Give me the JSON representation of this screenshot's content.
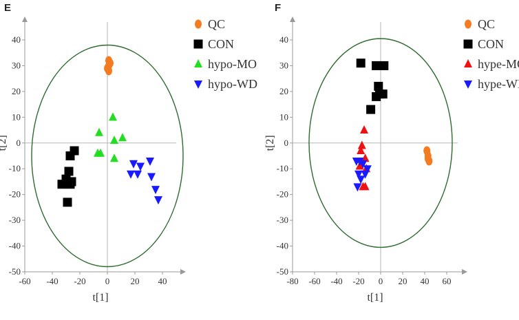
{
  "chart_data": [
    {
      "panel_label": "E",
      "type": "scatter",
      "xlabel": "t[1]",
      "ylabel": "t[2]",
      "xlim": [
        -60,
        50
      ],
      "ylim": [
        -50,
        45
      ],
      "xticks": [
        -60,
        -40,
        -20,
        0,
        20,
        40
      ],
      "yticks": [
        -50,
        -40,
        -30,
        -20,
        -10,
        0,
        10,
        20,
        30,
        40
      ],
      "ellipse": {
        "cx": 0,
        "cy": -5,
        "rx": 55,
        "ry": 43,
        "color": "#2e6b2e"
      },
      "series": [
        {
          "name": "QC",
          "marker": "circle",
          "color": "#f47b20",
          "points": [
            [
              1,
              32
            ],
            [
              2,
              31
            ],
            [
              1,
              30
            ],
            [
              0,
              29
            ],
            [
              1,
              28
            ]
          ]
        },
        {
          "name": "CON",
          "marker": "square",
          "color": "#000000",
          "points": [
            [
              -24,
              -3
            ],
            [
              -27,
              -5
            ],
            [
              -28,
              -11
            ],
            [
              -30,
              -14
            ],
            [
              -27,
              -16
            ],
            [
              -26,
              -15
            ],
            [
              -33,
              -16
            ],
            [
              -29,
              -23
            ]
          ]
        },
        {
          "name": "hypo-MO",
          "marker": "triangle-up",
          "color": "#22dd22",
          "points": [
            [
              4,
              10
            ],
            [
              -6,
              4
            ],
            [
              5,
              1
            ],
            [
              11,
              2
            ],
            [
              -7,
              -4
            ],
            [
              -5,
              -4
            ],
            [
              5,
              -6
            ]
          ]
        },
        {
          "name": "hypo-WD",
          "marker": "triangle-down",
          "color": "#1a1aff",
          "points": [
            [
              19,
              -8
            ],
            [
              24,
              -9
            ],
            [
              31,
              -7
            ],
            [
              17,
              -12
            ],
            [
              22,
              -12
            ],
            [
              32,
              -13
            ],
            [
              35,
              -18
            ],
            [
              37,
              -22
            ]
          ]
        }
      ]
    },
    {
      "panel_label": "F",
      "type": "scatter",
      "xlabel": "t[1]",
      "ylabel": "t[2]",
      "xlim": [
        -80,
        70
      ],
      "ylim": [
        -50,
        45
      ],
      "xticks": [
        -80,
        -60,
        -40,
        -20,
        0,
        20,
        40,
        60
      ],
      "yticks": [
        -50,
        -40,
        -30,
        -20,
        -10,
        0,
        10,
        20,
        30,
        40
      ],
      "ellipse": {
        "cx": 0,
        "cy": 0,
        "rx": 65,
        "ry": 40.5,
        "color": "#2e6b2e"
      },
      "series": [
        {
          "name": "QC",
          "marker": "circle",
          "color": "#f47b20",
          "points": [
            [
              42,
              -3
            ],
            [
              43,
              -5
            ],
            [
              43,
              -6
            ],
            [
              44,
              -7
            ]
          ]
        },
        {
          "name": "CON",
          "marker": "square",
          "color": "#000000",
          "points": [
            [
              -18,
              31
            ],
            [
              -4,
              30
            ],
            [
              3,
              30
            ],
            [
              -2,
              22
            ],
            [
              -1,
              19
            ],
            [
              2,
              19
            ],
            [
              -4,
              18
            ],
            [
              -9,
              13
            ]
          ]
        },
        {
          "name": "hype-MO",
          "marker": "triangle-up",
          "color": "#ee1111",
          "points": [
            [
              -15,
              5
            ],
            [
              -17,
              -1
            ],
            [
              -18,
              -3
            ],
            [
              -14,
              -6
            ],
            [
              -19,
              -9
            ],
            [
              -13,
              -10
            ],
            [
              -16,
              -17
            ],
            [
              -14,
              -17
            ]
          ]
        },
        {
          "name": "hype-WD",
          "marker": "triangle-down",
          "color": "#1a1aff",
          "points": [
            [
              -22,
              -7
            ],
            [
              -19,
              -7
            ],
            [
              -16,
              -8
            ],
            [
              -12,
              -10
            ],
            [
              -20,
              -12
            ],
            [
              -14,
              -12
            ],
            [
              -18,
              -14
            ],
            [
              -21,
              -17
            ]
          ]
        }
      ]
    }
  ]
}
